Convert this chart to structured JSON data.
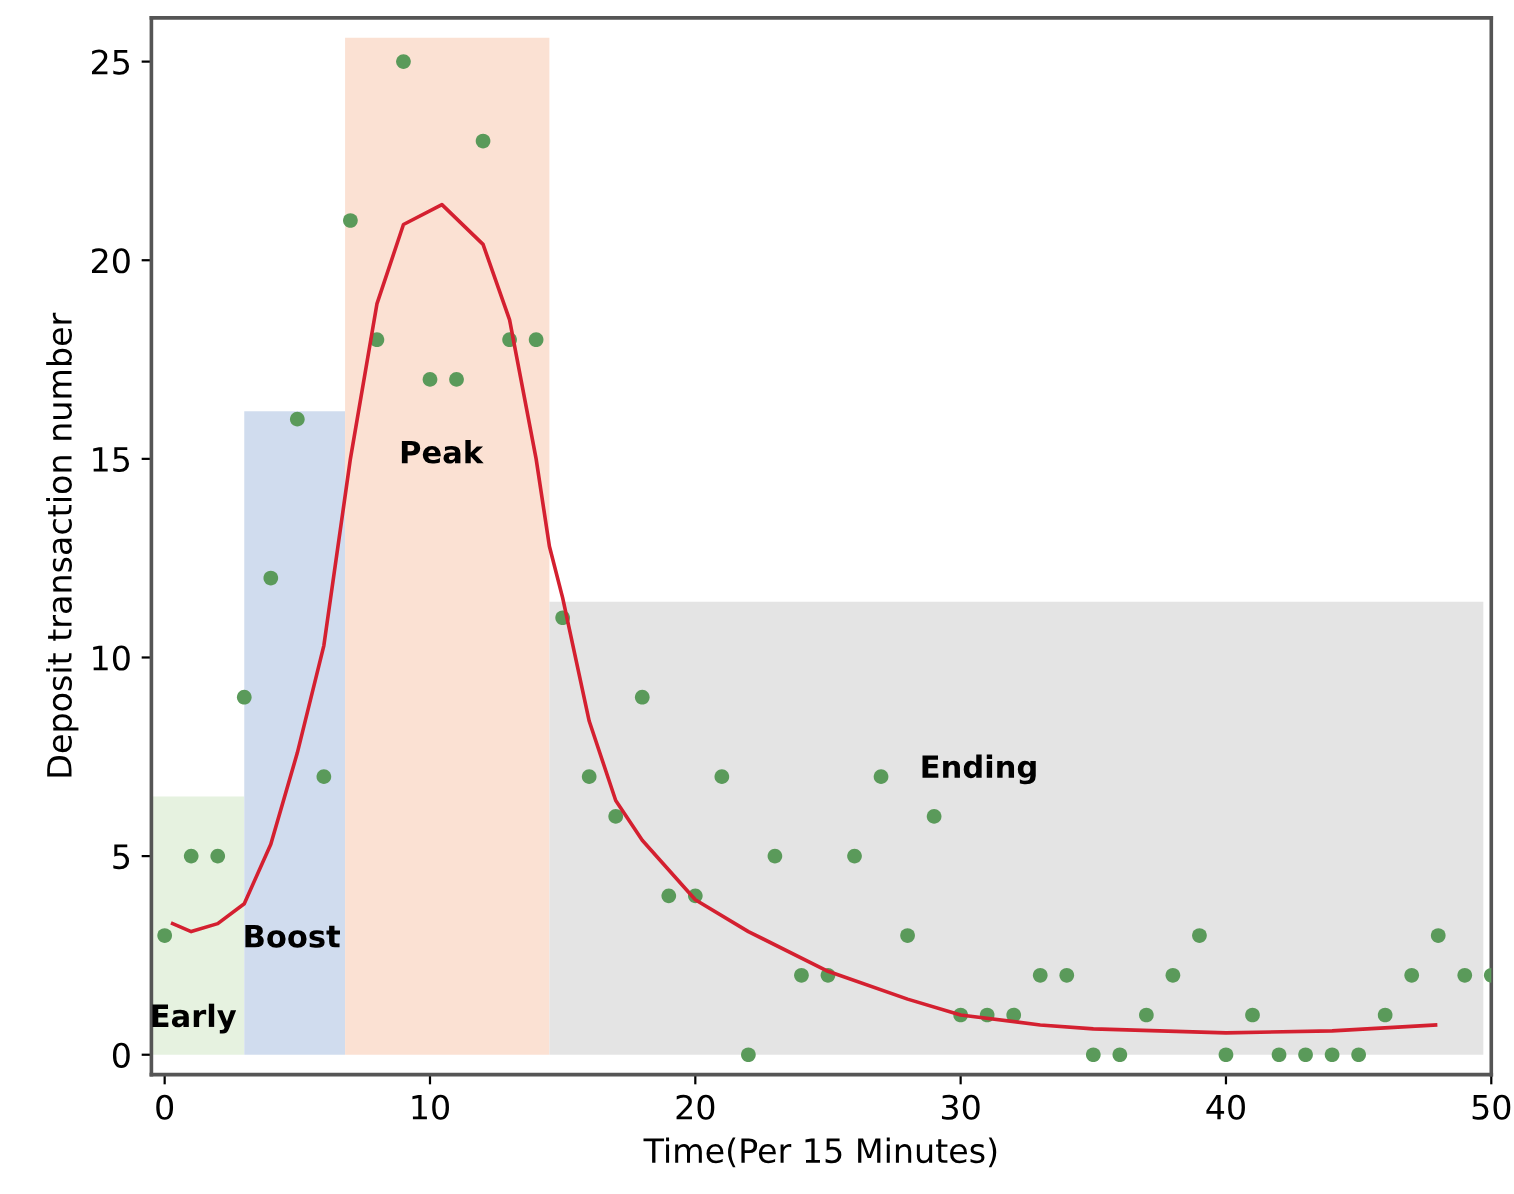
{
  "chart_data": {
    "type": "scatter",
    "xlabel": "Time(Per 15 Minutes)",
    "ylabel": "Deposit transaction number",
    "xlim": [
      -0.5,
      50
    ],
    "ylim": [
      -0.5,
      26.1
    ],
    "xticks": [
      0,
      10,
      20,
      30,
      40,
      50
    ],
    "yticks": [
      0,
      5,
      10,
      15,
      20,
      25
    ],
    "grid": false,
    "series": [
      {
        "type": "area",
        "color": "#e6f2e0",
        "x": [
          -0.5,
          3
        ],
        "values": [
          6.5,
          6.5
        ]
      },
      {
        "type": "area",
        "color": "#d0dcee",
        "x": [
          3,
          6.8
        ],
        "values": [
          16.2,
          16.2
        ]
      },
      {
        "type": "area",
        "color": "#fbe1d3",
        "x": [
          6.8,
          14.5
        ],
        "values": [
          25.6,
          25.6
        ]
      },
      {
        "type": "area",
        "color": "#e4e4e4",
        "x": [
          14.5,
          49.7
        ],
        "values": [
          11.4,
          11.4
        ]
      },
      {
        "marker": "circle",
        "color": "#5a9a5a",
        "x": [
          0,
          1,
          2,
          3,
          4,
          5,
          6,
          7,
          8,
          9,
          10,
          11,
          12,
          13,
          14,
          15,
          16,
          17,
          18,
          19,
          20,
          21,
          22,
          23,
          24,
          25,
          26,
          27,
          28,
          29,
          30,
          31,
          32,
          33,
          34,
          35,
          36,
          37,
          38,
          39,
          40,
          41,
          42,
          43,
          44,
          45,
          46,
          47,
          48,
          49,
          50
        ],
        "values": [
          3,
          5,
          5,
          9,
          12,
          16,
          7,
          21,
          18,
          25,
          17,
          17,
          23,
          18,
          18,
          11,
          7,
          6,
          9,
          4,
          4,
          7,
          0,
          5,
          2,
          2,
          5,
          7,
          3,
          6,
          1,
          1,
          1,
          2,
          2,
          0,
          0,
          1,
          2,
          3,
          0,
          1,
          0,
          0,
          0,
          0,
          1,
          2,
          3,
          2,
          2
        ]
      },
      {
        "type": "line",
        "color": "#d42030",
        "x": [
          0.3,
          1,
          2,
          3,
          4,
          5,
          6,
          7,
          8,
          9,
          10.45,
          12,
          13,
          14,
          14.5,
          15,
          16,
          17,
          18,
          20,
          22,
          25,
          28,
          30,
          33,
          35,
          40,
          44,
          47.9
        ],
        "values": [
          3.3,
          3.1,
          3.3,
          3.8,
          5.3,
          7.6,
          10.3,
          15,
          18.9,
          20.9,
          21.4,
          20.4,
          18.5,
          15,
          12.8,
          11.5,
          8.4,
          6.4,
          5.4,
          3.9,
          3.1,
          2.1,
          1.4,
          1.0,
          0.75,
          0.65,
          0.55,
          0.6,
          0.75
        ]
      }
    ],
    "annotations": [
      "Early",
      "Boost",
      "Peak",
      "Ending"
    ]
  }
}
